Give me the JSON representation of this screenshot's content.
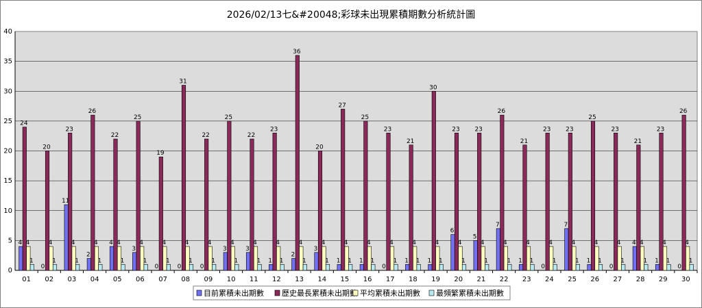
{
  "chart_data": {
    "type": "bar",
    "title": "2026/02/13七&#20048;彩球未出現累積期數分析統計圖",
    "xlabel": "",
    "ylabel": "",
    "ylim": [
      0,
      40
    ],
    "yticks": [
      0,
      5,
      10,
      15,
      20,
      25,
      30,
      35,
      40
    ],
    "grid": true,
    "legend_position": "bottom",
    "categories": [
      "01",
      "02",
      "03",
      "04",
      "05",
      "06",
      "07",
      "08",
      "09",
      "10",
      "11",
      "12",
      "13",
      "14",
      "15",
      "16",
      "17",
      "18",
      "19",
      "20",
      "21",
      "22",
      "23",
      "24",
      "25",
      "26",
      "27",
      "28",
      "29",
      "30"
    ],
    "series": [
      {
        "name": "目前累積未出期數",
        "color": "#7070f0",
        "values": [
          4,
          0,
          11,
          2,
          4,
          3,
          0,
          0,
          0,
          3,
          3,
          1,
          2,
          3,
          1,
          1,
          0,
          1,
          1,
          6,
          5,
          7,
          1,
          0,
          7,
          1,
          0,
          4,
          1,
          0
        ]
      },
      {
        "name": "歷史最長累積未出期數",
        "color": "#8a2a5a",
        "values": [
          24,
          20,
          23,
          26,
          22,
          25,
          19,
          31,
          22,
          25,
          22,
          23,
          36,
          20,
          27,
          25,
          23,
          21,
          30,
          23,
          23,
          26,
          21,
          23,
          23,
          25,
          23,
          21,
          23,
          26
        ]
      },
      {
        "name": "平均累積未出期數",
        "color": "#ffffc0",
        "values": [
          4,
          4,
          4,
          4,
          4,
          4,
          4,
          4,
          4,
          4,
          4,
          4,
          4,
          4,
          4,
          4,
          4,
          4,
          4,
          4,
          4,
          4,
          4,
          4,
          4,
          4,
          4,
          4,
          4,
          4
        ]
      },
      {
        "name": "最頻繁累積未出期數",
        "color": "#b8e8f0",
        "values": [
          1,
          1,
          1,
          1,
          1,
          1,
          1,
          1,
          1,
          1,
          1,
          1,
          1,
          1,
          1,
          1,
          1,
          1,
          1,
          1,
          1,
          1,
          1,
          1,
          1,
          1,
          1,
          1,
          1,
          1
        ]
      }
    ]
  }
}
